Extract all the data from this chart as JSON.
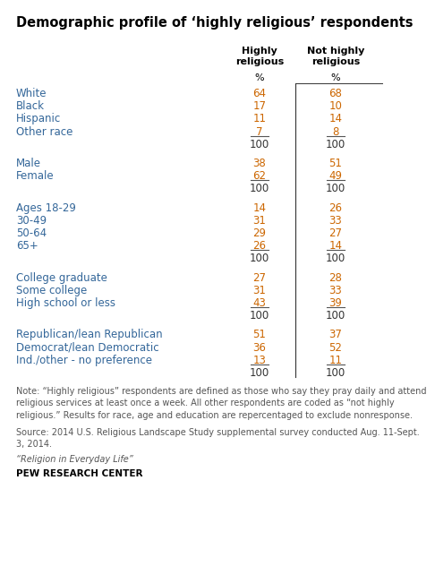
{
  "title": "Demographic profile of ‘highly religious’ respondents",
  "col1_header": "Highly\nreligious",
  "col2_header": "Not highly\nreligious",
  "pct_label": "%",
  "rows": [
    {
      "label": "White",
      "v1": "64",
      "v2": "68",
      "underline": false,
      "is_total": false,
      "spacer": false
    },
    {
      "label": "Black",
      "v1": "17",
      "v2": "10",
      "underline": false,
      "is_total": false,
      "spacer": false
    },
    {
      "label": "Hispanic",
      "v1": "11",
      "v2": "14",
      "underline": false,
      "is_total": false,
      "spacer": false
    },
    {
      "label": "Other race",
      "v1": "7",
      "v2": "8",
      "underline": true,
      "is_total": false,
      "spacer": false
    },
    {
      "label": "",
      "v1": "100",
      "v2": "100",
      "underline": false,
      "is_total": true,
      "spacer": false
    },
    {
      "label": "",
      "v1": "",
      "v2": "",
      "underline": false,
      "is_total": false,
      "spacer": true
    },
    {
      "label": "Male",
      "v1": "38",
      "v2": "51",
      "underline": false,
      "is_total": false,
      "spacer": false
    },
    {
      "label": "Female",
      "v1": "62",
      "v2": "49",
      "underline": true,
      "is_total": false,
      "spacer": false
    },
    {
      "label": "",
      "v1": "100",
      "v2": "100",
      "underline": false,
      "is_total": true,
      "spacer": false
    },
    {
      "label": "",
      "v1": "",
      "v2": "",
      "underline": false,
      "is_total": false,
      "spacer": true
    },
    {
      "label": "Ages 18-29",
      "v1": "14",
      "v2": "26",
      "underline": false,
      "is_total": false,
      "spacer": false
    },
    {
      "label": "30-49",
      "v1": "31",
      "v2": "33",
      "underline": false,
      "is_total": false,
      "spacer": false
    },
    {
      "label": "50-64",
      "v1": "29",
      "v2": "27",
      "underline": false,
      "is_total": false,
      "spacer": false
    },
    {
      "label": "65+",
      "v1": "26",
      "v2": "14",
      "underline": true,
      "is_total": false,
      "spacer": false
    },
    {
      "label": "",
      "v1": "100",
      "v2": "100",
      "underline": false,
      "is_total": true,
      "spacer": false
    },
    {
      "label": "",
      "v1": "",
      "v2": "",
      "underline": false,
      "is_total": false,
      "spacer": true
    },
    {
      "label": "College graduate",
      "v1": "27",
      "v2": "28",
      "underline": false,
      "is_total": false,
      "spacer": false
    },
    {
      "label": "Some college",
      "v1": "31",
      "v2": "33",
      "underline": false,
      "is_total": false,
      "spacer": false
    },
    {
      "label": "High school or less",
      "v1": "43",
      "v2": "39",
      "underline": true,
      "is_total": false,
      "spacer": false
    },
    {
      "label": "",
      "v1": "100",
      "v2": "100",
      "underline": false,
      "is_total": true,
      "spacer": false
    },
    {
      "label": "",
      "v1": "",
      "v2": "",
      "underline": false,
      "is_total": false,
      "spacer": true
    },
    {
      "label": "Republican/lean Republican",
      "v1": "51",
      "v2": "37",
      "underline": false,
      "is_total": false,
      "spacer": false
    },
    {
      "label": "Democrat/lean Democratic",
      "v1": "36",
      "v2": "52",
      "underline": false,
      "is_total": false,
      "spacer": false
    },
    {
      "label": "Ind./other - no preference",
      "v1": "13",
      "v2": "11",
      "underline": true,
      "is_total": false,
      "spacer": false
    },
    {
      "label": "",
      "v1": "100",
      "v2": "100",
      "underline": false,
      "is_total": true,
      "spacer": false
    }
  ],
  "note_text": "Note: “Highly religious” respondents are defined as those who say they pray daily and attend\nreligious services at least once a week. All other respondents are coded as “not highly\nreligious.” Results for race, age and education are repercentaged to exclude nonresponse.",
  "source_text": "Source: 2014 U.S. Religious Landscape Study supplemental survey conducted Aug. 11-Sept.\n3, 2014.",
  "book_text": "“Religion in Everyday Life”",
  "org_text": "PEW RESEARCH CENTER",
  "title_fontsize": 10.5,
  "header_fontsize": 8.0,
  "data_fontsize": 8.5,
  "note_fontsize": 7.0,
  "bg_color": "#ffffff",
  "title_color": "#000000",
  "label_color": "#336699",
  "data_color_v1": "#cc6600",
  "data_color_v2": "#cc6600",
  "total_color": "#333333",
  "header_color": "#000000",
  "divider_color": "#333333",
  "note_color": "#555555",
  "org_color": "#000000"
}
